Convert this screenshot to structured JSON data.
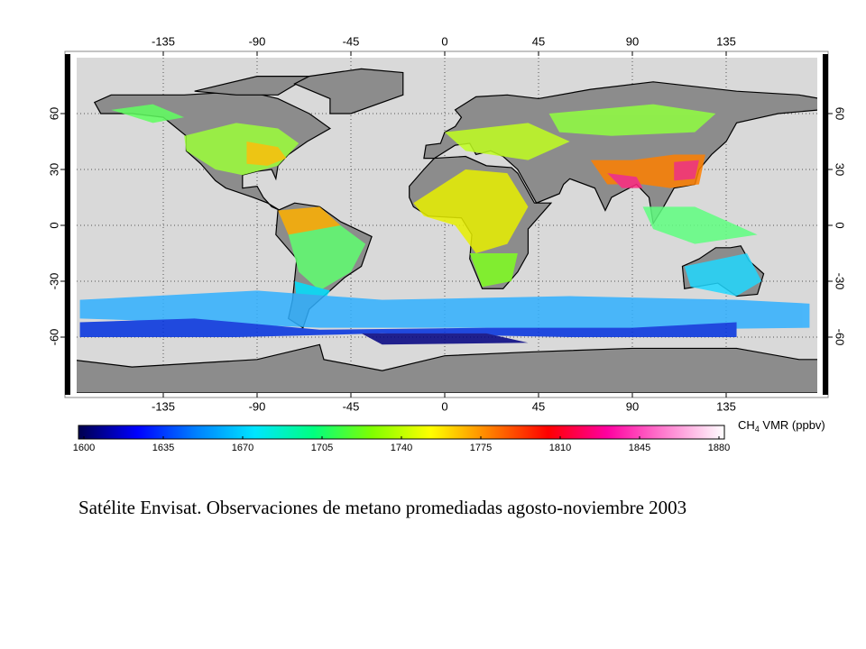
{
  "map": {
    "lonlim": [
      -180,
      180
    ],
    "latlim": [
      -90,
      90
    ],
    "lon_ticks": [
      -135,
      -90,
      -45,
      0,
      45,
      90,
      135
    ],
    "lat_ticks": [
      60,
      30,
      0,
      -30,
      -60
    ]
  },
  "colorbar": {
    "label_main": "CH",
    "label_sub": "4",
    "label_rest": " VMR (ppbv)",
    "range": [
      1600,
      1880
    ],
    "ticks": [
      1600,
      1635,
      1670,
      1705,
      1740,
      1775,
      1810,
      1845,
      1880
    ],
    "colormap": [
      "#00004d",
      "#0000ff",
      "#0080ff",
      "#00e5ff",
      "#00ff80",
      "#80ff00",
      "#ffff00",
      "#ff8000",
      "#ff0000",
      "#ff00a0",
      "#ff80d0",
      "#ffffff"
    ]
  },
  "caption": "Satélite Envisat. Observaciones de metano promediadas agosto-noviembre 2003"
}
